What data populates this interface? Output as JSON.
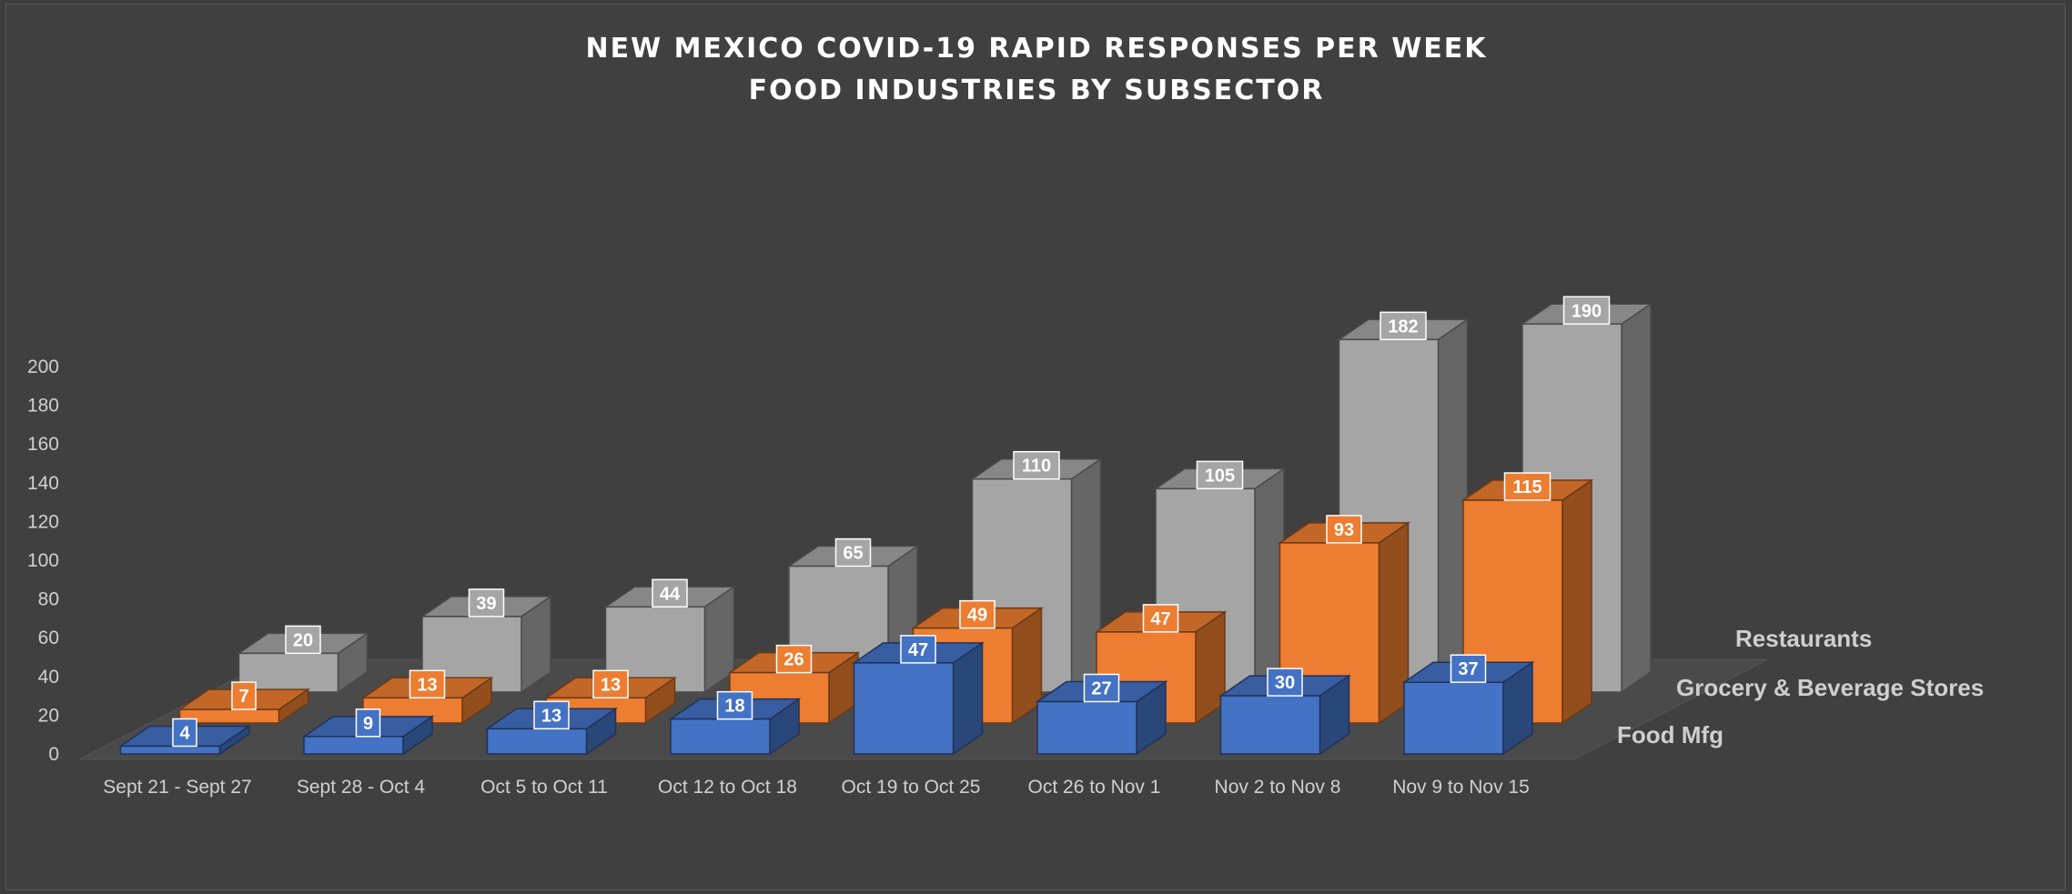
{
  "chart_data": {
    "type": "bar",
    "subtype": "3d-column",
    "title": "NEW MEXICO COVID-19 RAPID RESPONSES PER WEEK",
    "subtitle": "FOOD INDUSTRIES BY SUBSECTOR",
    "categories": [
      "Sept 21 - Sept 27",
      "Sept 28 - Oct 4",
      "Oct 5 to Oct 11",
      "Oct 12 to Oct 18",
      "Oct 19 to Oct 25",
      "Oct 26 to Nov 1",
      "Nov 2 to Nov 8",
      "Nov 9 to Nov 15"
    ],
    "series": [
      {
        "name": "Food Mfg",
        "values": [
          4,
          9,
          13,
          18,
          47,
          27,
          30,
          37
        ],
        "color": "#4472c4"
      },
      {
        "name": "Grocery & Beverage Stores",
        "values": [
          7,
          13,
          13,
          26,
          49,
          47,
          93,
          115
        ],
        "color": "#ed7d31"
      },
      {
        "name": "Restaurants",
        "values": [
          20,
          39,
          44,
          65,
          110,
          105,
          182,
          190
        ],
        "color": "#a5a5a5"
      }
    ],
    "yticks": [
      0,
      20,
      40,
      60,
      80,
      100,
      120,
      140,
      160,
      180,
      200
    ],
    "ylim": [
      0,
      200
    ],
    "grid": false,
    "data_labels": true,
    "background": "#404040"
  }
}
